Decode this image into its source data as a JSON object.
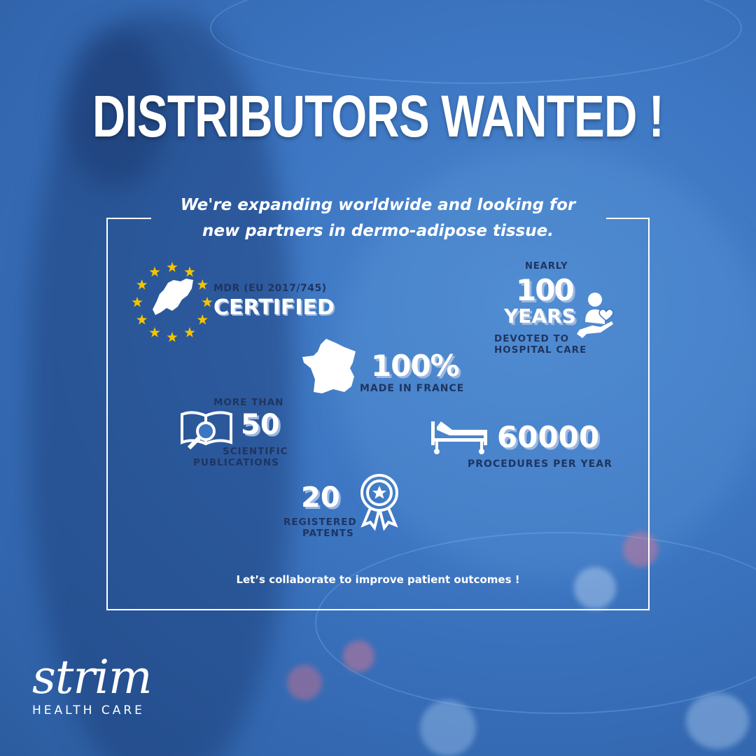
{
  "headline": "DISTRIBUTORS WANTED !",
  "subtitle": {
    "line1": "We're expanding worldwide and looking for",
    "line2": "new partners in dermo-adipose tissue."
  },
  "stats": {
    "mdr": {
      "label": "MDR (EU 2017/745)",
      "value": "CERTIFIED",
      "icon": "eu-stars-europe-map-icon"
    },
    "years": {
      "prefix": "NEARLY",
      "value": "100",
      "unit": "YEARS",
      "caption1": "DEVOTED TO",
      "caption2": "HOSPITAL CARE",
      "icon": "hand-care-person-heart-icon"
    },
    "france": {
      "value": "100%",
      "caption": "MADE IN FRANCE",
      "icon": "france-map-icon"
    },
    "publications": {
      "prefix": "MORE THAN",
      "value": "50",
      "caption1": "SCIENTIFIC",
      "caption2": "PUBLICATIONS",
      "icon": "book-magnifier-icon"
    },
    "procedures": {
      "value": "60000",
      "caption": "PROCEDURES PER YEAR",
      "icon": "hospital-bed-icon"
    },
    "patents": {
      "value": "20",
      "caption1": "REGISTERED",
      "caption2": "PATENTS",
      "icon": "award-ribbon-icon"
    }
  },
  "cta": "Let’s collaborate to improve patient outcomes !",
  "logo": {
    "wordmark": "strim",
    "tagline": "HEALTH CARE"
  },
  "colors": {
    "background": "#3d76c2",
    "dark_text": "#1e3561",
    "eu_star": "#f5c400"
  }
}
